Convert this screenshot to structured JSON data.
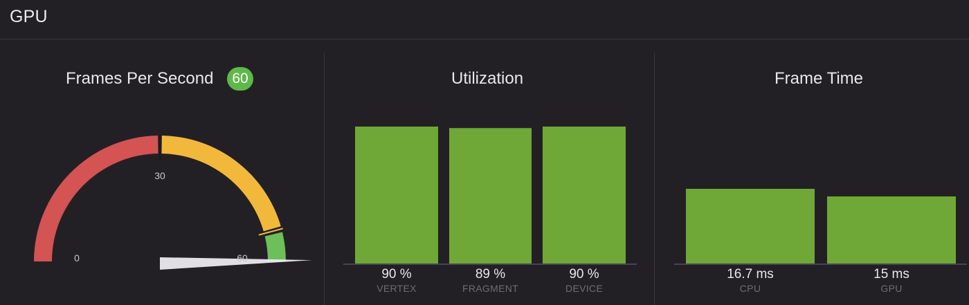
{
  "header": {
    "title": "GPU"
  },
  "fps_panel": {
    "title": "Frames Per Second",
    "badge": "60",
    "gauge": {
      "min": 0,
      "max": 60,
      "value": 60,
      "tick_labels": [
        "0",
        "30",
        "60"
      ],
      "colors": {
        "red": "#d45353",
        "yellow": "#f2b83c",
        "green": "#6cbf5a",
        "needle": "#eceaed"
      }
    }
  },
  "utilization_panel": {
    "title": "Utilization",
    "bars": [
      {
        "label": "VERTEX",
        "value_text": "90 %",
        "value": 90
      },
      {
        "label": "FRAGMENT",
        "value_text": "89 %",
        "value": 89
      },
      {
        "label": "DEVICE",
        "value_text": "90 %",
        "value": 90
      }
    ]
  },
  "frame_time_panel": {
    "title": "Frame Time",
    "bars": [
      {
        "label": "CPU",
        "value_text": "16.7 ms",
        "value": 16.7
      },
      {
        "label": "GPU",
        "value_text": "15 ms",
        "value": 15
      }
    ]
  },
  "colors": {
    "bar": "#6fa836",
    "baseline": "#6a6690",
    "background": "#232025"
  }
}
